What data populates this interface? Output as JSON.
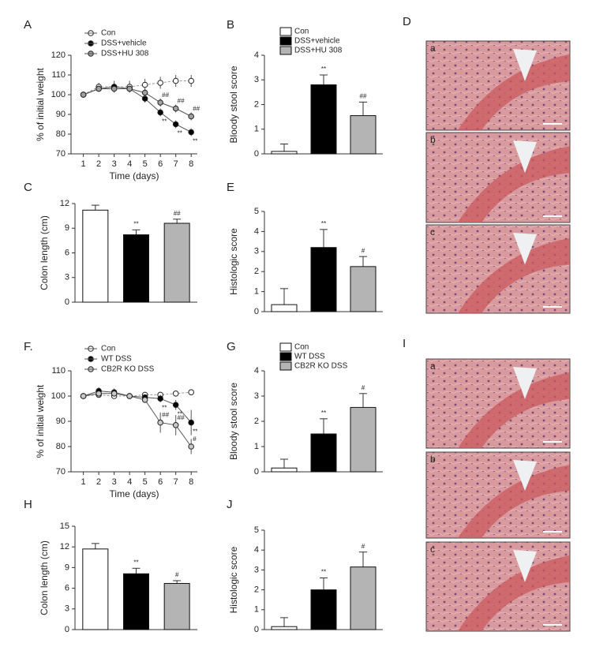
{
  "chart_data": [
    {
      "type": "line",
      "panel": "A",
      "ylabel": "% of initial weight",
      "xlabel": "Time (days)",
      "x": [
        1,
        2,
        3,
        4,
        5,
        6,
        7,
        8
      ],
      "xlim": [
        0.2,
        8.4
      ],
      "xticks": [
        1,
        2,
        3,
        4,
        5,
        6,
        7,
        8
      ],
      "ylim": [
        70,
        120
      ],
      "yticks": [
        70,
        80,
        90,
        100,
        110,
        120
      ],
      "series": [
        {
          "name": "Con",
          "color": "#ffffff",
          "values": [
            100,
            104,
            104,
            104,
            105,
            106,
            107,
            107
          ],
          "errors": [
            0,
            2,
            3,
            3,
            3,
            3,
            3,
            3
          ],
          "annotations": [
            null,
            null,
            null,
            null,
            null,
            null,
            null,
            null
          ]
        },
        {
          "name": "DSS+vehicle",
          "color": "#000000",
          "values": [
            100,
            103,
            104,
            103,
            98,
            91,
            85,
            81
          ],
          "errors": [
            0,
            1,
            1,
            1,
            2,
            2,
            2,
            2
          ],
          "annotations": [
            null,
            null,
            null,
            null,
            null,
            "**",
            "**",
            "**"
          ]
        },
        {
          "name": "DSS+HU 308",
          "color": "#a0a0a0",
          "values": [
            100,
            103,
            103,
            103,
            101,
            96,
            93,
            89
          ],
          "errors": [
            0,
            1,
            1,
            1,
            2,
            2,
            2,
            2
          ],
          "annotations": [
            null,
            null,
            null,
            null,
            null,
            "##",
            "##",
            "##"
          ]
        }
      ]
    },
    {
      "type": "bar",
      "panel": "B",
      "ylabel": "Bloody stool score",
      "legend": [
        "Con",
        "DSS+vehicle",
        "DSS+HU 308"
      ],
      "colors": [
        "#ffffff",
        "#000000",
        "#b4b4b4"
      ],
      "values": [
        0.1,
        2.8,
        1.55
      ],
      "errors": [
        0.3,
        0.4,
        0.55
      ],
      "annotations": [
        null,
        "**",
        "##"
      ],
      "ylim": [
        0,
        4
      ],
      "yticks": [
        0,
        1,
        2,
        3,
        4
      ]
    },
    {
      "type": "bar",
      "panel": "C",
      "ylabel": "Colon length (cm)",
      "colors": [
        "#ffffff",
        "#000000",
        "#b4b4b4"
      ],
      "values": [
        11.2,
        8.2,
        9.6
      ],
      "errors": [
        0.6,
        0.6,
        0.5
      ],
      "annotations": [
        null,
        "**",
        "##"
      ],
      "ylim": [
        0,
        12
      ],
      "yticks": [
        0,
        3,
        6,
        9,
        12
      ]
    },
    {
      "type": "bar",
      "panel": "E",
      "ylabel": "Histologic score",
      "colors": [
        "#ffffff",
        "#000000",
        "#b4b4b4"
      ],
      "values": [
        0.35,
        3.2,
        2.25
      ],
      "errors": [
        0.8,
        0.9,
        0.5
      ],
      "annotations": [
        null,
        "**",
        "#"
      ],
      "ylim": [
        0,
        5
      ],
      "yticks": [
        0,
        1,
        2,
        3,
        4,
        5
      ]
    },
    {
      "type": "line",
      "panel": "F.",
      "ylabel": "% of initial weight",
      "xlabel": "Time (days)",
      "x": [
        1,
        2,
        3,
        4,
        5,
        6,
        7,
        8
      ],
      "xlim": [
        0.2,
        8.4
      ],
      "xticks": [
        1,
        2,
        3,
        4,
        5,
        6,
        7,
        8
      ],
      "ylim": [
        70,
        110
      ],
      "yticks": [
        70,
        80,
        90,
        100,
        110
      ],
      "series": [
        {
          "name": "Con",
          "color": "#ffffff",
          "values": [
            100,
            100.5,
            100,
            100,
            100.5,
            100.5,
            101,
            101.5
          ],
          "errors": [
            0,
            1,
            1,
            1,
            1,
            1,
            1,
            1
          ],
          "annotations": [
            null,
            null,
            null,
            null,
            null,
            null,
            null,
            null
          ]
        },
        {
          "name": "WT DSS",
          "color": "#000000",
          "values": [
            100,
            102,
            101.5,
            100,
            99.5,
            99,
            96.5,
            89.5
          ],
          "errors": [
            0,
            1.5,
            1.5,
            1,
            1,
            1.5,
            2,
            5
          ],
          "annotations": [
            null,
            null,
            null,
            null,
            null,
            "**",
            "**",
            "**"
          ]
        },
        {
          "name": "CB2R KO DSS",
          "color": "#c8c8c8",
          "values": [
            100,
            101,
            101,
            100,
            98.5,
            89.5,
            88.5,
            80
          ],
          "errors": [
            0,
            1,
            1,
            1,
            1,
            4,
            4,
            3
          ],
          "annotations": [
            null,
            null,
            null,
            null,
            null,
            "##",
            "##",
            "#"
          ]
        }
      ]
    },
    {
      "type": "bar",
      "panel": "G",
      "ylabel": "Bloody stool score",
      "legend": [
        "Con",
        "WT DSS",
        "CB2R KO DSS"
      ],
      "colors": [
        "#ffffff",
        "#000000",
        "#b4b4b4"
      ],
      "values": [
        0.15,
        1.5,
        2.55
      ],
      "errors": [
        0.35,
        0.6,
        0.55
      ],
      "annotations": [
        null,
        "**",
        "#"
      ],
      "ylim": [
        0,
        4
      ],
      "yticks": [
        0,
        1,
        2,
        3,
        4
      ]
    },
    {
      "type": "bar",
      "panel": "H",
      "ylabel": "Colon length (cm)",
      "colors": [
        "#ffffff",
        "#000000",
        "#b4b4b4"
      ],
      "values": [
        11.7,
        8.1,
        6.7
      ],
      "errors": [
        0.8,
        0.8,
        0.4
      ],
      "annotations": [
        null,
        "**",
        "#"
      ],
      "ylim": [
        0,
        15
      ],
      "yticks": [
        0,
        3,
        6,
        9,
        12,
        15
      ]
    },
    {
      "type": "bar",
      "panel": "J",
      "ylabel": "Histologic score",
      "colors": [
        "#ffffff",
        "#000000",
        "#b4b4b4"
      ],
      "values": [
        0.15,
        2.0,
        3.15
      ],
      "errors": [
        0.45,
        0.6,
        0.75
      ],
      "annotations": [
        null,
        "**",
        "#"
      ],
      "ylim": [
        0,
        5
      ],
      "yticks": [
        0,
        1,
        2,
        3,
        4,
        5
      ]
    }
  ],
  "micrographs": [
    {
      "panel": "D",
      "labels": [
        "a",
        "b",
        "c"
      ]
    },
    {
      "panel": "I",
      "labels": [
        "a",
        "b",
        "c"
      ]
    }
  ]
}
